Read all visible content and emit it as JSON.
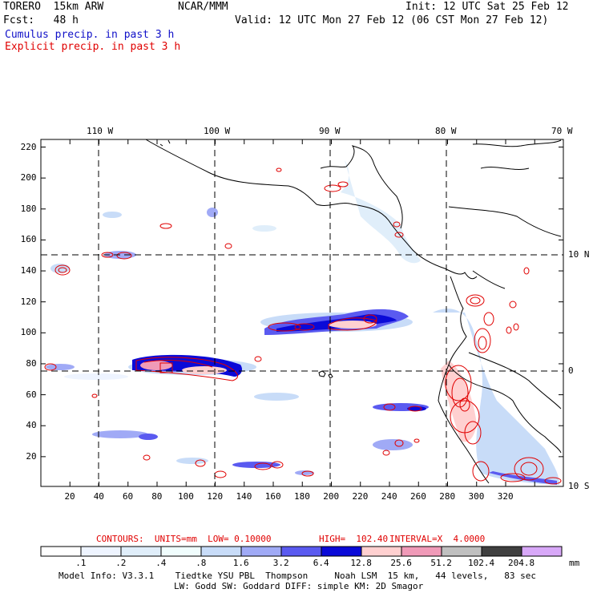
{
  "header": {
    "model": "TORERO  15km ARW",
    "org": "NCAR/MMM",
    "init": "Init: 12 UTC Sat 25 Feb 12",
    "fcst": "Fcst:   48 h",
    "valid": "Valid: 12 UTC Mon 27 Feb 12 (06 CST Mon 27 Feb 12)",
    "legend_cumulus": "Cumulus precip. in past 3 h",
    "legend_explicit": "Explicit precip. in past 3 h",
    "cumulus_color": "#1010c8",
    "explicit_color": "#e00000"
  },
  "map": {
    "x_ticks": [
      "20",
      "40",
      "60",
      "80",
      "100",
      "120",
      "140",
      "160",
      "180",
      "200",
      "220",
      "240",
      "260",
      "280",
      "300",
      "320"
    ],
    "y_ticks": [
      "20",
      "40",
      "60",
      "80",
      "100",
      "120",
      "140",
      "160",
      "180",
      "200",
      "220"
    ],
    "lon_labels": [
      "110 W",
      "100 W",
      "90 W",
      "80 W",
      "70 W"
    ],
    "lat_labels": [
      "10 N",
      "0",
      "10 S"
    ]
  },
  "contour_info": {
    "label": "CONTOURS:  UNITS=mm  LOW= 0.10000",
    "high": "HIGH=  102.40",
    "interval": "INTERVAL=X  4.0000"
  },
  "colorbar": {
    "ticks": [
      ".1",
      ".2",
      ".4",
      ".8",
      "1.6",
      "3.2",
      "6.4",
      "12.8",
      "25.6",
      "51.2",
      "102.4",
      "204.8"
    ],
    "colors": [
      "#ffffff",
      "#eef4ff",
      "#e0eefa",
      "#f0fdfd",
      "#c8dcf8",
      "#a0aaf6",
      "#5a5af0",
      "#0a0ad8",
      "#ffd0d0",
      "#f09ab8",
      "#c0c0c0",
      "#404040",
      "#d8a8f8"
    ],
    "unit": "mm"
  },
  "footer": {
    "line1": "Model Info: V3.3.1    Tiedtke YSU PBL  Thompson     Noah LSM  15 km,   44 levels,   83 sec",
    "line2": "LW: Godd SW: Goddard DIFF: simple KM: 2D Smagor"
  }
}
